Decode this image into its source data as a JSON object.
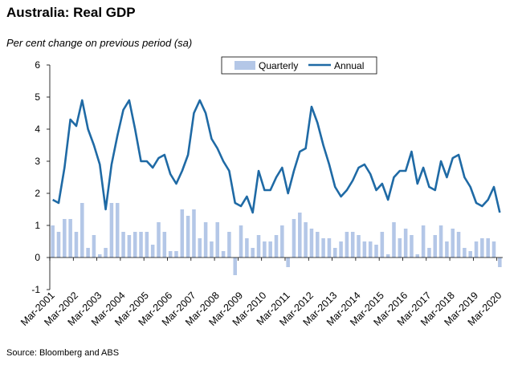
{
  "title": "Australia: Real GDP",
  "subtitle": "Per cent change on previous period (sa)",
  "source": "Source: Bloomberg and ABS",
  "colors": {
    "quarterly": "#b4c7e7",
    "annual": "#1f6aa5",
    "axis": "#000000"
  },
  "chart_data": {
    "type": "bar+line",
    "title": "Australia: Real GDP",
    "ylabel": "Per cent change on previous period (sa)",
    "ylim": [
      -1,
      6
    ],
    "yticks": [
      -1,
      0,
      1,
      2,
      3,
      4,
      5,
      6
    ],
    "legend": {
      "position": "top-center",
      "entries": [
        "Quarterly",
        "Annual"
      ]
    },
    "x_tick_labels": [
      "Mar-2001",
      "Mar-2002",
      "Mar-2003",
      "Mar-2004",
      "Mar-2005",
      "Mar-2006",
      "Mar-2007",
      "Mar-2008",
      "Mar-2009",
      "Mar-2010",
      "Mar-2011",
      "Mar-2012",
      "Mar-2013",
      "Mar-2014",
      "Mar-2015",
      "Mar-2016",
      "Mar-2017",
      "Mar-2018",
      "Mar-2019",
      "Mar-2020"
    ],
    "series": [
      {
        "name": "Quarterly",
        "kind": "bar",
        "values": [
          1.0,
          0.8,
          1.2,
          1.2,
          0.8,
          1.7,
          0.3,
          0.7,
          0.1,
          0.3,
          1.7,
          1.7,
          0.8,
          0.7,
          0.8,
          0.8,
          0.8,
          0.4,
          1.1,
          0.8,
          0.2,
          0.2,
          1.5,
          1.3,
          1.5,
          0.6,
          1.1,
          0.5,
          1.1,
          0.2,
          0.8,
          -0.55,
          1.0,
          0.6,
          0.3,
          0.7,
          0.5,
          0.5,
          0.7,
          1.0,
          -0.3,
          1.2,
          1.4,
          1.1,
          0.9,
          0.8,
          0.6,
          0.6,
          0.3,
          0.5,
          0.8,
          0.8,
          0.7,
          0.5,
          0.5,
          0.4,
          0.8,
          0.1,
          1.1,
          0.6,
          0.9,
          0.7,
          0.1,
          1.0,
          0.3,
          0.7,
          1.0,
          0.5,
          0.9,
          0.8,
          0.3,
          0.2,
          0.5,
          0.6,
          0.6,
          0.5,
          -0.3
        ]
      },
      {
        "name": "Annual",
        "kind": "line",
        "values": [
          1.8,
          1.7,
          2.8,
          4.3,
          4.1,
          4.9,
          4.0,
          3.5,
          2.9,
          1.5,
          2.9,
          3.8,
          4.6,
          4.9,
          4.0,
          3.0,
          3.0,
          2.8,
          3.1,
          3.2,
          2.6,
          2.3,
          2.7,
          3.2,
          4.5,
          4.9,
          4.5,
          3.7,
          3.4,
          3.0,
          2.7,
          1.7,
          1.6,
          1.9,
          1.4,
          2.7,
          2.1,
          2.1,
          2.5,
          2.8,
          2.0,
          2.7,
          3.3,
          3.4,
          4.7,
          4.2,
          3.5,
          2.9,
          2.2,
          1.9,
          2.1,
          2.4,
          2.8,
          2.9,
          2.6,
          2.1,
          2.3,
          1.8,
          2.5,
          2.7,
          2.7,
          3.3,
          2.3,
          2.8,
          2.2,
          2.1,
          3.0,
          2.5,
          3.1,
          3.2,
          2.5,
          2.2,
          1.7,
          1.6,
          1.8,
          2.2,
          1.4
        ]
      }
    ]
  }
}
